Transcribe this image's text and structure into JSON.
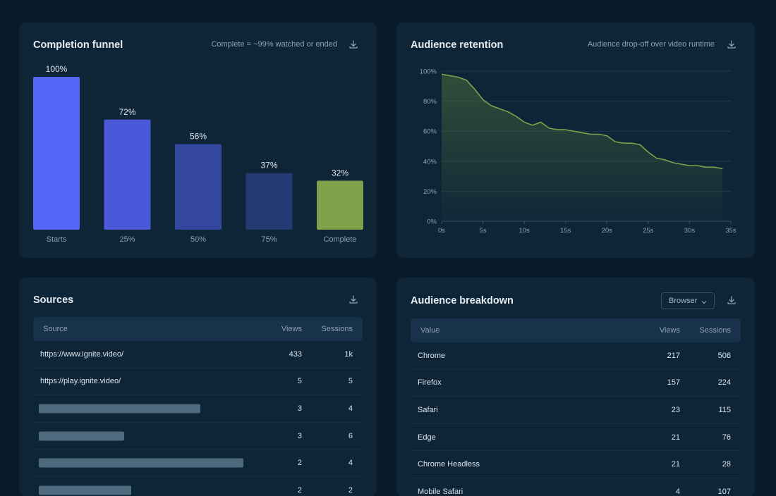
{
  "funnel": {
    "title": "Completion funnel",
    "note": "Complete = ~99% watched or ended",
    "download_icon": "download-icon",
    "chart_data": {
      "type": "bar",
      "categories": [
        "Starts",
        "25%",
        "50%",
        "75%",
        "Complete"
      ],
      "values": [
        100,
        72,
        56,
        37,
        32
      ],
      "value_labels": [
        "100%",
        "72%",
        "56%",
        "37%",
        "32%"
      ],
      "colors": [
        "#5566fb",
        "#4a59d9",
        "#34479e",
        "#233a73",
        "#7ea24a"
      ],
      "ylim": [
        0,
        100
      ]
    }
  },
  "retention": {
    "title": "Audience retention",
    "note": "Audience drop-off over video runtime",
    "download_icon": "download-icon",
    "chart_data": {
      "type": "area",
      "x": [
        0,
        1,
        2,
        3,
        4,
        5,
        6,
        7,
        8,
        9,
        10,
        11,
        12,
        13,
        14,
        15,
        16,
        17,
        18,
        19,
        20,
        21,
        22,
        23,
        24,
        25,
        26,
        27,
        28,
        29,
        30,
        31,
        32,
        33,
        34
      ],
      "values": [
        98,
        97,
        96,
        94,
        88,
        81,
        77,
        75,
        73,
        70,
        66,
        64,
        66,
        62,
        61,
        61,
        60,
        59,
        58,
        58,
        57,
        53,
        52,
        52,
        51,
        46,
        42,
        41,
        39,
        38,
        37,
        37,
        36,
        36,
        35
      ],
      "xticks": [
        "0s",
        "5s",
        "10s",
        "15s",
        "20s",
        "25s",
        "30s",
        "35s"
      ],
      "xtick_values": [
        0,
        5,
        10,
        15,
        20,
        25,
        30,
        35
      ],
      "yticks": [
        "0%",
        "20%",
        "40%",
        "60%",
        "80%",
        "100%"
      ],
      "ytick_values": [
        0,
        20,
        40,
        60,
        80,
        100
      ],
      "xlim": [
        0,
        35
      ],
      "ylim": [
        0,
        100
      ],
      "grid": true,
      "line_color": "#7ea24a"
    }
  },
  "sources": {
    "title": "Sources",
    "download_icon": "download-icon",
    "columns": {
      "source": "Source",
      "views": "Views",
      "sessions": "Sessions"
    },
    "rows": [
      {
        "source": "https://www.ignite.video/",
        "views": "433",
        "sessions": "1k",
        "redacted": false,
        "redact_frac": 0
      },
      {
        "source": "https://play.ignite.video/",
        "views": "5",
        "sessions": "5",
        "redacted": false,
        "redact_frac": 0
      },
      {
        "source": "",
        "views": "3",
        "sessions": "4",
        "redacted": true,
        "redact_frac": 0.49
      },
      {
        "source": "",
        "views": "3",
        "sessions": "6",
        "redacted": true,
        "redact_frac": 0.26
      },
      {
        "source": "",
        "views": "2",
        "sessions": "4",
        "redacted": true,
        "redact_frac": 0.62
      },
      {
        "source": "",
        "views": "2",
        "sessions": "2",
        "redacted": true,
        "redact_frac": 0.28
      }
    ]
  },
  "breakdown": {
    "title": "Audience breakdown",
    "dropdown_value": "Browser",
    "download_icon": "download-icon",
    "columns": {
      "value": "Value",
      "views": "Views",
      "sessions": "Sessions"
    },
    "rows": [
      {
        "value": "Chrome",
        "views": "217",
        "sessions": "506"
      },
      {
        "value": "Firefox",
        "views": "157",
        "sessions": "224"
      },
      {
        "value": "Safari",
        "views": "23",
        "sessions": "115"
      },
      {
        "value": "Edge",
        "views": "21",
        "sessions": "76"
      },
      {
        "value": "Chrome Headless",
        "views": "21",
        "sessions": "28"
      },
      {
        "value": "Mobile Safari",
        "views": "4",
        "sessions": "107"
      }
    ]
  }
}
